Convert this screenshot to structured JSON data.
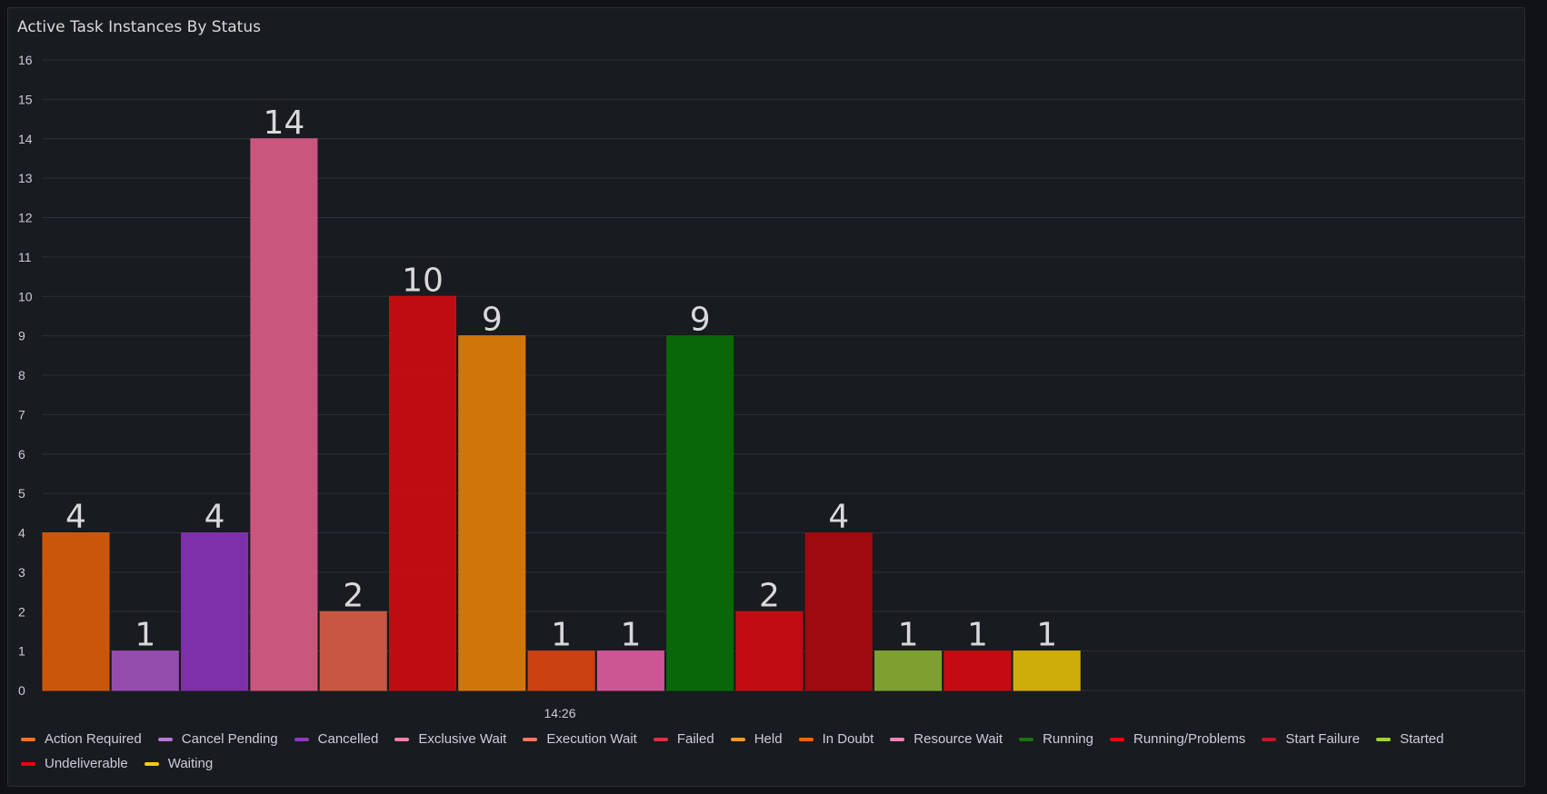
{
  "panel": {
    "title": "Active Task Instances By Status"
  },
  "chart_data": {
    "type": "bar",
    "title": "Active Task Instances By Status",
    "xlabel": "14:26",
    "ylabel": "",
    "ylim": [
      0,
      16
    ],
    "yticks": [
      0,
      1,
      2,
      3,
      4,
      5,
      6,
      7,
      8,
      9,
      10,
      11,
      12,
      13,
      14,
      15,
      16
    ],
    "grid": true,
    "legend_position": "bottom",
    "categories": [
      "Action Required",
      "Cancel Pending",
      "Cancelled",
      "Exclusive Wait",
      "Execution Wait",
      "Failed",
      "Held",
      "In Doubt",
      "Resource Wait",
      "Running",
      "Running/Problems",
      "Start Failure",
      "Started",
      "Undeliverable",
      "Waiting"
    ],
    "values": [
      4,
      1,
      4,
      14,
      2,
      10,
      9,
      1,
      1,
      9,
      2,
      4,
      1,
      1,
      1
    ],
    "colors": [
      "#d45a0a",
      "#9b4fb5",
      "#8432b0",
      "#d35a82",
      "#d25a44",
      "#c80c12",
      "#d97a08",
      "#d54310",
      "#d6589a",
      "#086b0a",
      "#c90c12",
      "#a60a0e",
      "#84a833",
      "#cf0a12",
      "#d8b409"
    ]
  },
  "legend": [
    {
      "label": "Action Required",
      "color": "#f07323"
    },
    {
      "label": "Cancel Pending",
      "color": "#b877d9"
    },
    {
      "label": "Cancelled",
      "color": "#8f3bb8"
    },
    {
      "label": "Exclusive Wait",
      "color": "#ff7fa8"
    },
    {
      "label": "Execution Wait",
      "color": "#ff7a5a"
    },
    {
      "label": "Failed",
      "color": "#e02f44"
    },
    {
      "label": "Held",
      "color": "#ff9830"
    },
    {
      "label": "In Doubt",
      "color": "#fa6400"
    },
    {
      "label": "Resource Wait",
      "color": "#ff80c0"
    },
    {
      "label": "Running",
      "color": "#19730e"
    },
    {
      "label": "Running/Problems",
      "color": "#f2000c"
    },
    {
      "label": "Start Failure",
      "color": "#c4162a"
    },
    {
      "label": "Started",
      "color": "#a0d03c"
    },
    {
      "label": "Undeliverable",
      "color": "#f2000c"
    },
    {
      "label": "Waiting",
      "color": "#f2cc0c"
    }
  ]
}
